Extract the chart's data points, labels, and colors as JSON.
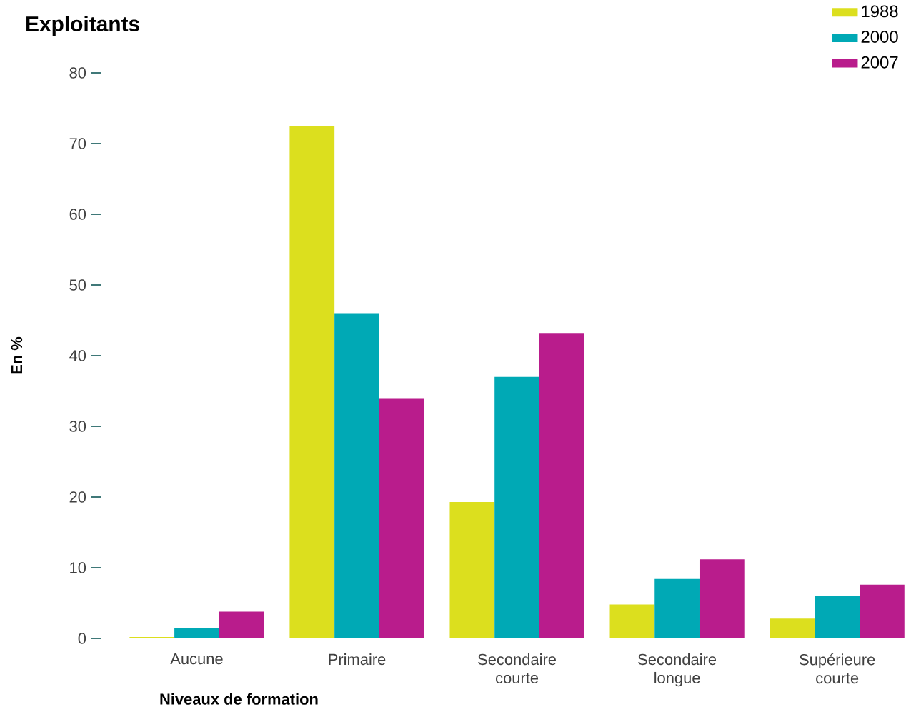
{
  "chart_data": {
    "type": "bar",
    "title": "Exploitants",
    "xlabel": "Niveaux de formation",
    "ylabel": "En %",
    "categories": [
      "Aucune",
      "Primaire",
      "Secondaire courte",
      "Secondaire longue",
      "Supérieure courte"
    ],
    "series": [
      {
        "name": "1988",
        "color": "#dcdf1e",
        "values": [
          0.2,
          72.5,
          19.3,
          4.8,
          2.8
        ]
      },
      {
        "name": "2000",
        "color": "#00a9b5",
        "values": [
          1.5,
          46.0,
          37.0,
          8.4,
          6.0
        ]
      },
      {
        "name": "2007",
        "color": "#b91c8c",
        "values": [
          3.8,
          33.9,
          43.2,
          11.2,
          7.6
        ]
      }
    ],
    "ylim": [
      0,
      80
    ],
    "yticks": [
      0,
      10,
      20,
      30,
      40,
      50,
      60,
      70,
      80
    ],
    "grid": false,
    "legend": "top right"
  }
}
